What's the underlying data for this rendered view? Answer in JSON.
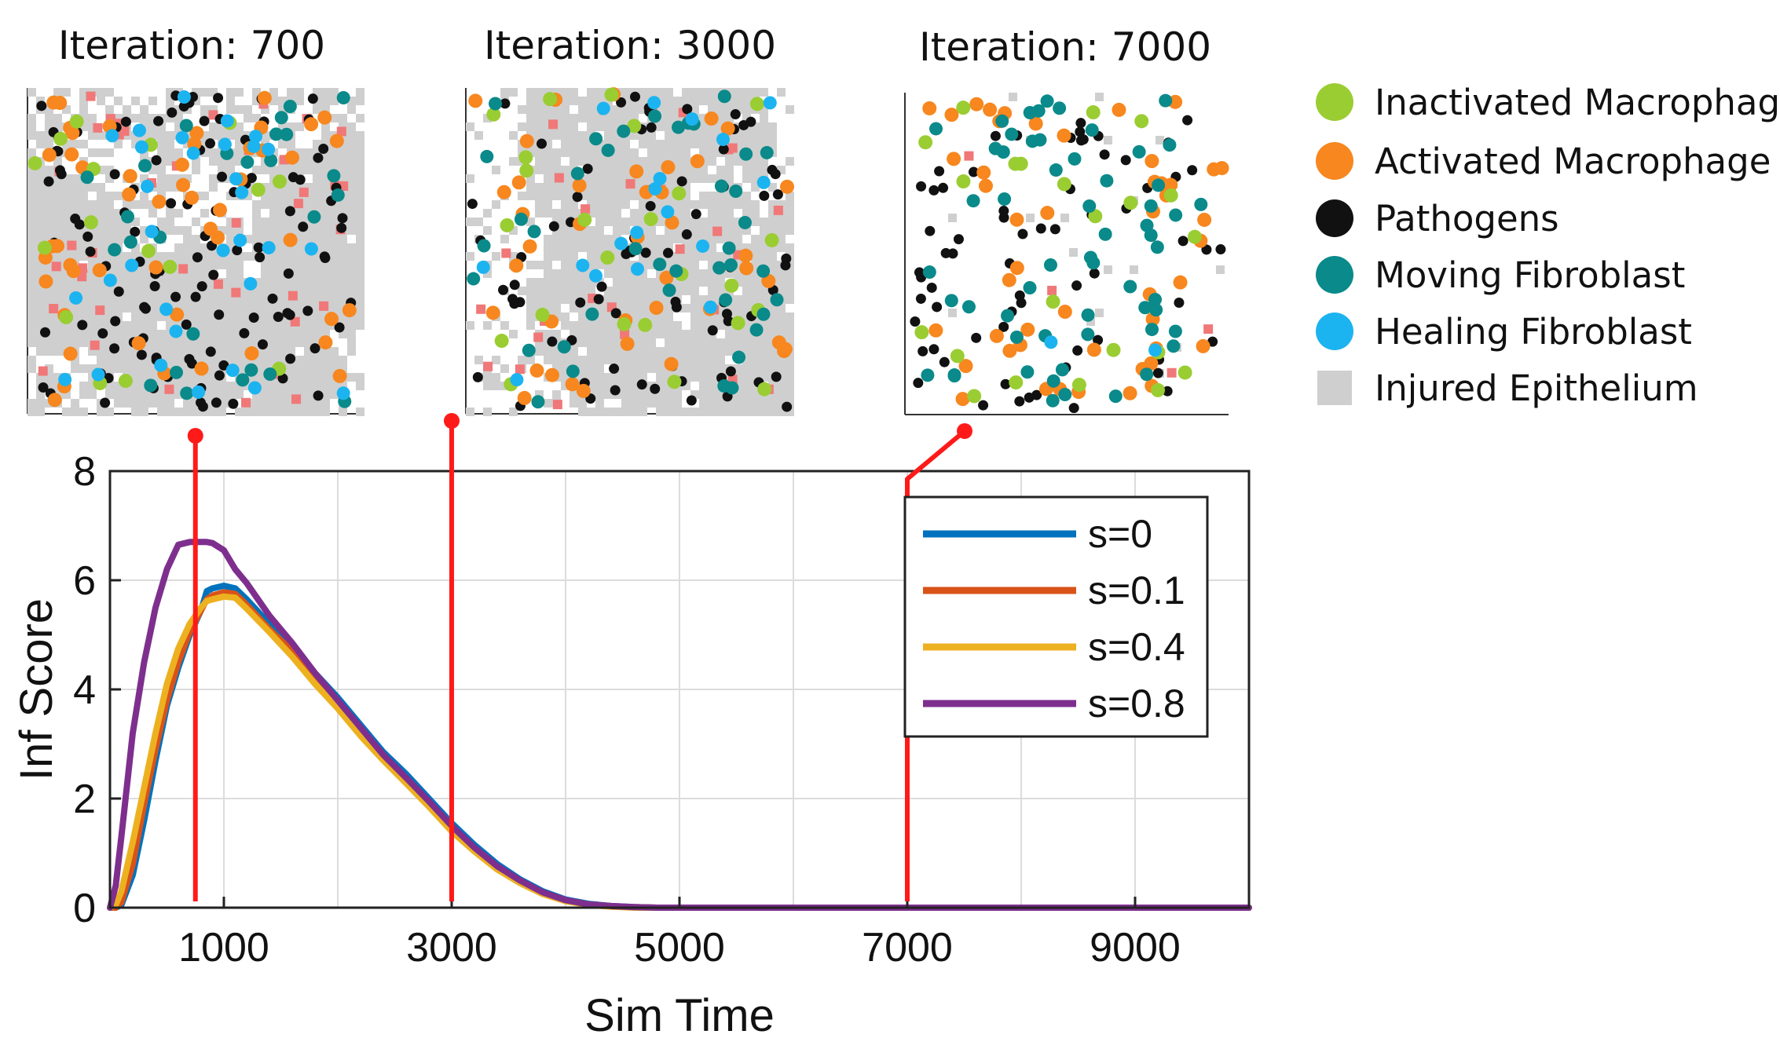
{
  "snapshots": [
    {
      "title": "Iteration: 700",
      "iteration": 700
    },
    {
      "title": "Iteration: 3000",
      "iteration": 3000
    },
    {
      "title": "Iteration: 7000",
      "iteration": 7000
    }
  ],
  "cell_legend": [
    {
      "label": "Inactivated Macrophage",
      "color": "#9ACD32",
      "shape": "circle"
    },
    {
      "label": "Activated Macrophage",
      "color": "#F7871E",
      "shape": "circle"
    },
    {
      "label": "Pathogens",
      "color": "#111111",
      "shape": "circle"
    },
    {
      "label": "Moving Fibroblast",
      "color": "#0A8A8A",
      "shape": "circle"
    },
    {
      "label": "Healing Fibroblast",
      "color": "#1BB4F0",
      "shape": "circle"
    },
    {
      "label": "Injured Epithelium",
      "color": "#CFCFCF",
      "shape": "square"
    }
  ],
  "colors": {
    "marker_line": "#FF1A1A",
    "grid": "#dcdcdc",
    "axis": "#222222",
    "highlight_patch": "#F07878"
  },
  "chart_data": {
    "type": "line",
    "title": "",
    "xlabel": "Sim Time",
    "ylabel": "Inf Score",
    "xlim": [
      0,
      10000
    ],
    "ylim": [
      0,
      8
    ],
    "xticks": [
      1000,
      3000,
      5000,
      7000,
      9000
    ],
    "yticks": [
      0,
      2,
      4,
      6,
      8
    ],
    "grid": true,
    "legend_position": "right",
    "markers": [
      750,
      3000,
      7000
    ],
    "series": [
      {
        "name": "s=0",
        "color": "#0072BD",
        "x": [
          0,
          50,
          100,
          200,
          300,
          400,
          500,
          600,
          700,
          800,
          850,
          900,
          1000,
          1100,
          1200,
          1400,
          1600,
          1800,
          2000,
          2200,
          2400,
          2600,
          2800,
          3000,
          3200,
          3400,
          3600,
          3800,
          4000,
          4200,
          4400,
          4600,
          4800,
          5000,
          5500,
          6000,
          7000,
          8000,
          9000,
          10000
        ],
        "y": [
          0.0,
          0.0,
          0.05,
          0.6,
          1.6,
          2.7,
          3.7,
          4.4,
          5.0,
          5.45,
          5.8,
          5.85,
          5.9,
          5.85,
          5.65,
          5.2,
          4.8,
          4.3,
          3.85,
          3.35,
          2.85,
          2.45,
          2.0,
          1.55,
          1.15,
          0.8,
          0.52,
          0.3,
          0.15,
          0.07,
          0.03,
          0.01,
          0.0,
          0.0,
          0.0,
          0.0,
          0.0,
          0.0,
          0.0,
          0.0
        ]
      },
      {
        "name": "s=0.1",
        "color": "#D95319",
        "x": [
          0,
          50,
          100,
          200,
          300,
          400,
          500,
          600,
          700,
          800,
          850,
          900,
          1000,
          1100,
          1200,
          1400,
          1600,
          1800,
          2000,
          2200,
          2400,
          2600,
          2800,
          3000,
          3200,
          3400,
          3600,
          3800,
          4000,
          4200,
          4400,
          4600,
          4800,
          5000,
          5500,
          6000,
          7000,
          8000,
          9000,
          10000
        ],
        "y": [
          0.0,
          0.0,
          0.1,
          0.8,
          1.9,
          2.9,
          3.8,
          4.5,
          5.05,
          5.45,
          5.65,
          5.72,
          5.78,
          5.75,
          5.55,
          5.1,
          4.7,
          4.2,
          3.75,
          3.25,
          2.75,
          2.35,
          1.9,
          1.45,
          1.08,
          0.74,
          0.48,
          0.27,
          0.13,
          0.06,
          0.02,
          0.01,
          0.0,
          0.0,
          0.0,
          0.0,
          0.0,
          0.0,
          0.0,
          0.0
        ]
      },
      {
        "name": "s=0.4",
        "color": "#EDB120",
        "x": [
          0,
          50,
          100,
          200,
          300,
          400,
          500,
          600,
          700,
          800,
          850,
          900,
          1000,
          1100,
          1200,
          1400,
          1600,
          1800,
          2000,
          2200,
          2400,
          2600,
          2800,
          3000,
          3200,
          3400,
          3600,
          3800,
          4000,
          4200,
          4400,
          4600,
          4800,
          5000,
          5500,
          6000,
          7000,
          8000,
          9000,
          10000
        ],
        "y": [
          0.0,
          0.05,
          0.3,
          1.2,
          2.2,
          3.2,
          4.1,
          4.75,
          5.2,
          5.5,
          5.62,
          5.65,
          5.7,
          5.68,
          5.48,
          5.05,
          4.6,
          4.1,
          3.65,
          3.15,
          2.7,
          2.28,
          1.85,
          1.4,
          1.03,
          0.7,
          0.45,
          0.25,
          0.12,
          0.05,
          0.02,
          0.0,
          0.0,
          0.0,
          0.0,
          0.0,
          0.0,
          0.0,
          0.0,
          0.0
        ]
      },
      {
        "name": "s=0.8",
        "color": "#7E2F8E",
        "x": [
          0,
          50,
          100,
          200,
          300,
          400,
          500,
          600,
          700,
          800,
          850,
          900,
          1000,
          1100,
          1200,
          1400,
          1600,
          1800,
          2000,
          2200,
          2400,
          2600,
          2800,
          3000,
          3200,
          3400,
          3600,
          3800,
          4000,
          4200,
          4400,
          4600,
          4800,
          5000,
          5500,
          6000,
          7000,
          8000,
          9000,
          10000
        ],
        "y": [
          0.0,
          0.4,
          1.3,
          3.2,
          4.5,
          5.5,
          6.2,
          6.65,
          6.7,
          6.7,
          6.7,
          6.68,
          6.55,
          6.2,
          5.95,
          5.35,
          4.85,
          4.3,
          3.8,
          3.3,
          2.8,
          2.38,
          1.95,
          1.5,
          1.1,
          0.76,
          0.5,
          0.28,
          0.14,
          0.06,
          0.03,
          0.01,
          0.0,
          0.0,
          0.0,
          0.0,
          0.0,
          0.0,
          0.0,
          0.0
        ]
      }
    ]
  }
}
